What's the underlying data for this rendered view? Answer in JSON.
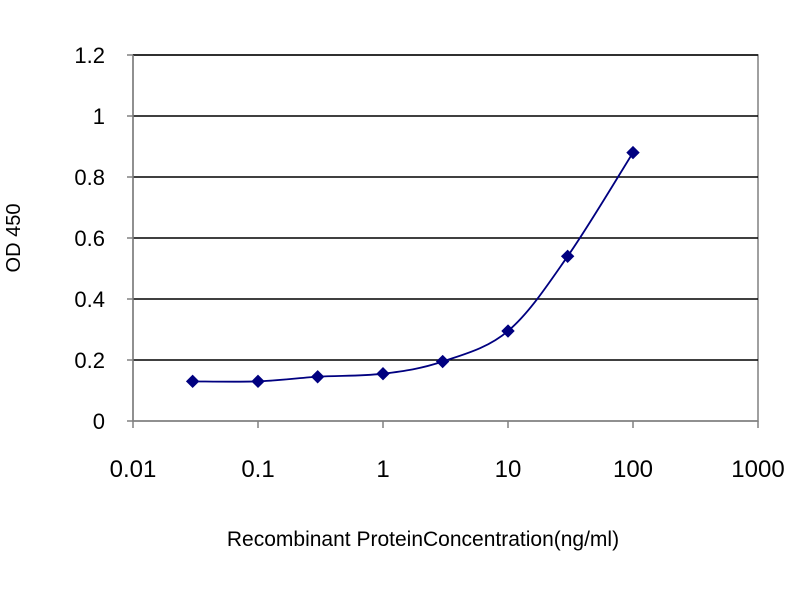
{
  "chart_data": {
    "type": "line",
    "title": "",
    "xlabel": "Recombinant ProteinConcentration(ng/ml)",
    "ylabel": "OD 450",
    "x_scale": "log",
    "xlim": [
      0.01,
      1000
    ],
    "ylim": [
      0,
      1.2
    ],
    "x_ticks": [
      "0.01",
      "0.1",
      "1",
      "10",
      "100",
      "1000"
    ],
    "x_tick_values": [
      0.01,
      0.1,
      1,
      10,
      100,
      1000
    ],
    "y_ticks": [
      "0",
      "0.2",
      "0.4",
      "0.6",
      "0.8",
      "1",
      "1.2"
    ],
    "y_tick_values": [
      0,
      0.2,
      0.4,
      0.6,
      0.8,
      1,
      1.2
    ],
    "grid": "horizontal",
    "legend": "none",
    "series": [
      {
        "x": [
          0.03,
          0.1,
          0.3,
          1,
          3,
          10,
          30,
          100
        ],
        "y": [
          0.13,
          0.13,
          0.145,
          0.155,
          0.195,
          0.295,
          0.54,
          0.88
        ],
        "color": "#000080",
        "marker": "diamond"
      }
    ]
  }
}
